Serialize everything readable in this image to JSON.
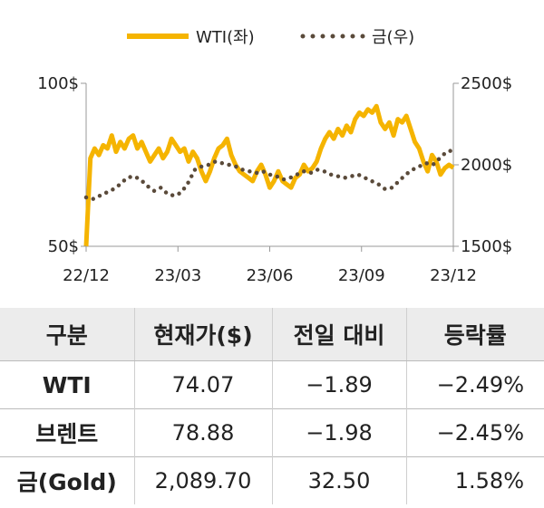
{
  "chart_data": {
    "type": "line",
    "x_ticks": [
      "22/12",
      "23/03",
      "23/06",
      "23/09",
      "23/12"
    ],
    "y_left": {
      "ticks": [
        "100$",
        "50$"
      ],
      "range": [
        50,
        100
      ]
    },
    "y_right": {
      "ticks": [
        "2500$",
        "2000$",
        "1500$"
      ],
      "range": [
        1500,
        2500
      ]
    },
    "series": [
      {
        "name": "WTI(좌)",
        "axis": "left",
        "color": "#f5b400",
        "style": "solid",
        "values": [
          50,
          77,
          80,
          78,
          81,
          80,
          84,
          79,
          82,
          80,
          83,
          84,
          80,
          82,
          79,
          76,
          78,
          80,
          77,
          79,
          83,
          81,
          79,
          80,
          76,
          79,
          77,
          73,
          70,
          73,
          77,
          80,
          81,
          83,
          78,
          75,
          73,
          72,
          71,
          70,
          73,
          75,
          72,
          68,
          70,
          73,
          70,
          69,
          68,
          71,
          72,
          75,
          73,
          74,
          76,
          80,
          83,
          85,
          83,
          86,
          84,
          87,
          85,
          89,
          91,
          90,
          92,
          91,
          93,
          88,
          86,
          88,
          84,
          89,
          88,
          90,
          86,
          82,
          80,
          76,
          73,
          78,
          76,
          72,
          74,
          75,
          74.07
        ]
      },
      {
        "name": "금(우)",
        "axis": "right",
        "color": "#5a4a3a",
        "style": "dotted",
        "values": [
          1800,
          1790,
          1810,
          1830,
          1850,
          1880,
          1920,
          1930,
          1910,
          1870,
          1840,
          1860,
          1820,
          1810,
          1830,
          1890,
          1970,
          1990,
          2000,
          2020,
          2010,
          2000,
          1990,
          1970,
          1960,
          1950,
          1960,
          1940,
          1930,
          1910,
          1920,
          1940,
          1960,
          1950,
          1970,
          1960,
          1940,
          1930,
          1920,
          1930,
          1940,
          1920,
          1900,
          1880,
          1850,
          1860,
          1900,
          1940,
          1970,
          1990,
          2010,
          2000,
          2040,
          2080,
          2089.7
        ]
      }
    ]
  },
  "table": {
    "headers": [
      "구분",
      "현재가($)",
      "전일 대비",
      "등락률"
    ],
    "rows": [
      {
        "label": "WTI",
        "price": "74.07",
        "change": "−1.89",
        "rate": "−2.49%"
      },
      {
        "label": "브렌트",
        "price": "78.88",
        "change": "−1.98",
        "rate": "−2.45%"
      },
      {
        "label": "금(Gold)",
        "price": "2,089.70",
        "change": "32.50",
        "rate": "1.58%"
      }
    ]
  }
}
